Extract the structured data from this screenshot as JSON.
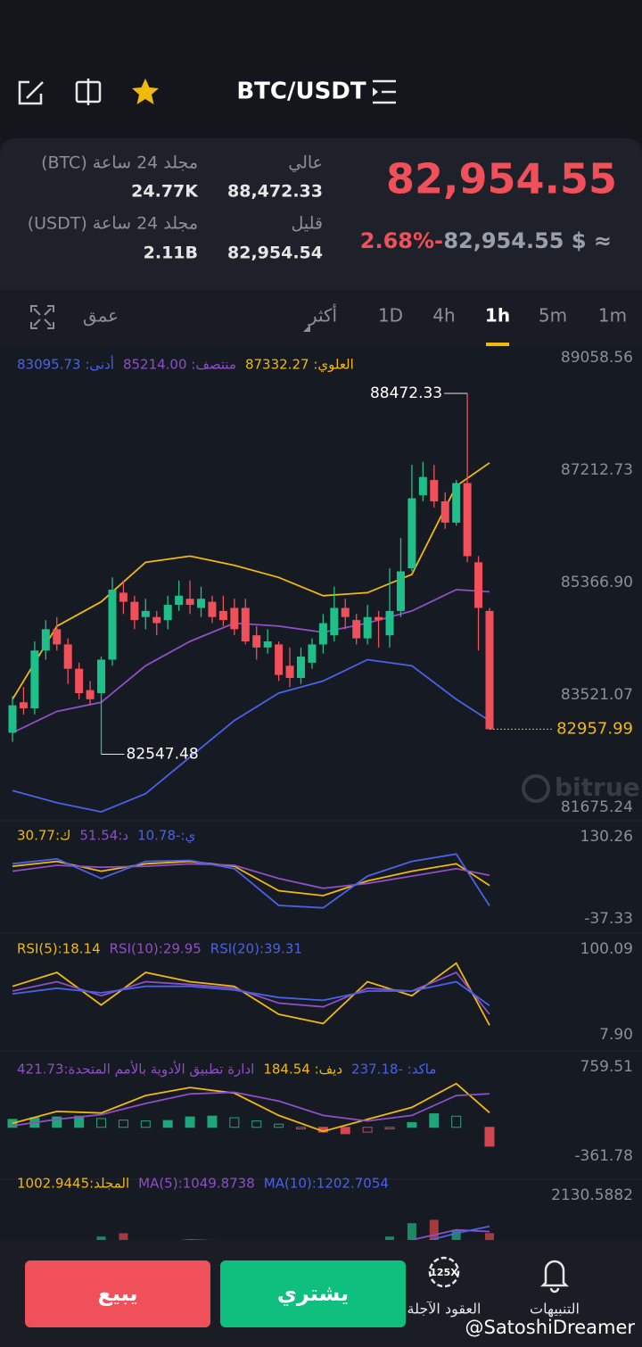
{
  "header": {
    "pair": "BTC/USDT"
  },
  "stats": {
    "price": "82,954.55",
    "change": "2.68%-",
    "fiat": "82,954.55 $ ≈",
    "high_label": "عالي",
    "high": "88,472.33",
    "low_label": "قليل",
    "low": "82,954.54",
    "vol_btc_label": "مجلد 24 ساعة (BTC)",
    "vol_btc": "24.77K",
    "vol_usdt_label": "مجلد 24 ساعة (USDT)",
    "vol_usdt": "2.11B"
  },
  "tabs": [
    "1m",
    "5m",
    "1h",
    "4h",
    "1D",
    "أكثر",
    "عمق"
  ],
  "footer": {
    "sell": "يبيع",
    "buy": "يشتري",
    "futures": "العقود الآجلة",
    "futures_badge": "125X",
    "alerts": "التنبيهات",
    "watermark": "@SatoshiDreamer"
  },
  "brand": "bitrue",
  "chart_data": [
    {
      "type": "candlestick",
      "open": [
        82900,
        83400,
        83300,
        84250,
        84600,
        84350,
        83950,
        83600,
        83550,
        84100,
        85200,
        85050,
        84800,
        84800,
        84750,
        85000,
        85100,
        84950,
        85050,
        84900,
        84950,
        84950,
        84500,
        84300,
        84350,
        84000,
        83800,
        84050,
        84350,
        84500,
        84950,
        84750,
        84450,
        84800,
        84500,
        84900,
        85600,
        86800,
        87050,
        86700,
        86350,
        87000,
        85700,
        84900
      ],
      "high": [
        83500,
        83650,
        84400,
        84750,
        84800,
        84450,
        84050,
        83750,
        84150,
        85450,
        85400,
        85150,
        85100,
        84900,
        85150,
        85400,
        85400,
        85300,
        85150,
        85150,
        85100,
        85100,
        84650,
        84600,
        84400,
        84300,
        84300,
        84450,
        84850,
        85300,
        85100,
        84850,
        85000,
        84900,
        85600,
        86100,
        87300,
        87350,
        87300,
        86850,
        87050,
        88472.33,
        85800,
        84950
      ],
      "low": [
        82750,
        83200,
        83200,
        84100,
        84250,
        83700,
        83450,
        83350,
        82547.48,
        84000,
        84850,
        84600,
        84600,
        84500,
        84600,
        84900,
        84850,
        84800,
        84700,
        84650,
        84500,
        84350,
        84100,
        84200,
        83750,
        83650,
        83700,
        83950,
        84200,
        84400,
        84600,
        84350,
        84350,
        84300,
        84300,
        84800,
        85550,
        86700,
        86600,
        86250,
        86300,
        85700,
        84250,
        82957.99
      ],
      "close": [
        83350,
        83300,
        84250,
        84600,
        84350,
        83950,
        83550,
        83450,
        84100,
        85250,
        85050,
        84750,
        84900,
        84700,
        85000,
        85150,
        85000,
        85100,
        84800,
        84750,
        84600,
        84400,
        84300,
        84400,
        83850,
        83800,
        84150,
        84350,
        84700,
        84950,
        84800,
        84450,
        84800,
        84750,
        84900,
        85550,
        86750,
        87100,
        86700,
        86350,
        87000,
        85800,
        84950,
        82957.99
      ],
      "series": [
        {
          "name": "العلوي: 87332.27",
          "color": "#f0b90b",
          "x": [
            0,
            4,
            8,
            12,
            16,
            20,
            24,
            28,
            32,
            36,
            40,
            43
          ],
          "values": [
            83450,
            84650,
            85050,
            85700,
            85800,
            85650,
            85450,
            85150,
            85200,
            85500,
            86950,
            87332.27
          ]
        },
        {
          "name": "منتصف: 85214.00",
          "color": "#8e4fc7",
          "x": [
            0,
            4,
            8,
            12,
            16,
            20,
            24,
            28,
            32,
            36,
            40,
            43
          ],
          "values": [
            82900,
            83250,
            83400,
            84000,
            84400,
            84700,
            84650,
            84550,
            84700,
            84900,
            85250,
            85214
          ]
        },
        {
          "name": "أدنى: 83095.73",
          "color": "#4a62e8",
          "x": [
            0,
            4,
            8,
            12,
            16,
            20,
            24,
            28,
            32,
            36,
            40,
            43
          ],
          "values": [
            81950,
            81750,
            81600,
            81900,
            82500,
            83100,
            83550,
            83750,
            84100,
            84000,
            83450,
            83095.73
          ]
        }
      ],
      "max_label": 88472.33,
      "min_label": 82547.48,
      "last_price": 82957.99,
      "ylim": [
        81675.24,
        89058.56
      ],
      "yticks": [
        89058.56,
        87212.73,
        {
          "value": 85366.9,
          "label": "85366.90"
        },
        83521.07,
        81675.24
      ],
      "grid": false
    },
    {
      "type": "line",
      "series": [
        {
          "name": "ك:30.77",
          "color": "#f0b90b",
          "x": [
            0,
            4,
            8,
            12,
            16,
            20,
            24,
            28,
            32,
            36,
            40,
            43
          ],
          "values": [
            70,
            80,
            60,
            75,
            80,
            70,
            20,
            10,
            40,
            60,
            75,
            30.77
          ]
        },
        {
          "name": "د:51.54",
          "color": "#8e4fc7",
          "x": [
            0,
            4,
            8,
            12,
            16,
            20,
            24,
            28,
            32,
            36,
            40,
            43
          ],
          "values": [
            60,
            72,
            68,
            70,
            75,
            72,
            45,
            25,
            35,
            50,
            65,
            51.54
          ]
        },
        {
          "name": "ي:-10.78",
          "color": "#4a62e8",
          "x": [
            0,
            4,
            8,
            12,
            16,
            20,
            24,
            28,
            32,
            36,
            40,
            43
          ],
          "values": [
            75,
            85,
            45,
            80,
            82,
            65,
            -10,
            -15,
            50,
            80,
            95,
            -10.78
          ]
        }
      ],
      "ylim": [
        -37.33,
        130.26
      ],
      "yticks": [
        130.26,
        -37.33
      ],
      "grid": false
    },
    {
      "type": "line",
      "series": [
        {
          "name": "RSI(5):18.14",
          "color": "#f0b90b",
          "x": [
            0,
            4,
            8,
            12,
            16,
            20,
            24,
            28,
            32,
            36,
            40,
            43
          ],
          "values": [
            60,
            75,
            40,
            75,
            65,
            60,
            30,
            20,
            65,
            50,
            85,
            18.14
          ]
        },
        {
          "name": "RSI(10):29.95",
          "color": "#8e4fc7",
          "x": [
            0,
            4,
            8,
            12,
            16,
            20,
            24,
            28,
            32,
            36,
            40,
            43
          ],
          "values": [
            55,
            65,
            50,
            65,
            62,
            58,
            42,
            38,
            58,
            55,
            75,
            29.95
          ]
        },
        {
          "name": "RSI(20):39.31",
          "color": "#4a62e8",
          "x": [
            0,
            4,
            8,
            12,
            16,
            20,
            24,
            28,
            32,
            36,
            40,
            43
          ],
          "values": [
            52,
            58,
            53,
            60,
            60,
            56,
            48,
            45,
            55,
            55,
            65,
            39.31
          ]
        }
      ],
      "ylim": [
        {
          "value": 7.9,
          "label": "7.90"
        },
        100.09
      ],
      "yticks": [
        100.09,
        {
          "value": 7.9,
          "label": "7.90"
        }
      ],
      "grid": false
    },
    {
      "type": "macd",
      "series": [
        {
          "name": "ديف: 184.54",
          "color": "#f0b90b",
          "x": [
            0,
            4,
            8,
            12,
            16,
            20,
            24,
            28,
            32,
            36,
            40,
            43
          ],
          "values": [
            50,
            200,
            180,
            400,
            500,
            430,
            150,
            -50,
            100,
            250,
            550,
            184.54
          ]
        },
        {
          "name": "ادارة تطبيق الأدوية بالأمم المتحدة:421.73",
          "color": "#8e4fc7",
          "x": [
            0,
            4,
            8,
            12,
            16,
            20,
            24,
            28,
            32,
            36,
            40,
            43
          ],
          "values": [
            20,
            100,
            160,
            300,
            420,
            440,
            330,
            150,
            80,
            150,
            400,
            421.73
          ]
        }
      ],
      "histogram": {
        "name": "ماكد: -237.18",
        "x": [
          0,
          2,
          4,
          6,
          8,
          10,
          12,
          14,
          16,
          18,
          20,
          22,
          24,
          26,
          28,
          30,
          32,
          34,
          36,
          38,
          40,
          43
        ],
        "values": [
          100,
          120,
          130,
          140,
          110,
          90,
          80,
          85,
          130,
          140,
          120,
          80,
          40,
          -20,
          -60,
          -80,
          -60,
          -20,
          60,
          170,
          140,
          -237.18
        ]
      },
      "ylim": [
        -361.78,
        759.51
      ],
      "yticks": [
        759.51,
        -361.78
      ],
      "grid": false
    },
    {
      "type": "volume",
      "bars": {
        "name": "المجلد:1002.9445",
        "x": [
          0,
          2,
          4,
          6,
          8,
          10,
          12,
          14,
          16,
          18,
          20,
          22,
          24,
          26,
          28,
          30,
          32,
          34,
          36,
          38,
          40,
          43
        ],
        "values": [
          600,
          500,
          650,
          550,
          900,
          1000,
          700,
          650,
          500,
          800,
          400,
          300,
          700,
          600,
          350,
          500,
          450,
          900,
          1300,
          1400,
          1100,
          1002.9445
        ]
      },
      "series": [
        {
          "name": "MA(5):1049.8738",
          "color": "#8e4fc7",
          "x": [
            0,
            4,
            8,
            12,
            16,
            20,
            24,
            28,
            32,
            36,
            40,
            43
          ],
          "values": [
            500,
            600,
            650,
            700,
            800,
            750,
            600,
            500,
            500,
            800,
            1100,
            1049.8738
          ]
        },
        {
          "name": "MA(10):1202.7054",
          "color": "#4a62e8",
          "x": [
            0,
            4,
            8,
            12,
            16,
            20,
            24,
            28,
            32,
            36,
            40,
            43
          ],
          "values": [
            450,
            550,
            600,
            650,
            700,
            750,
            700,
            600,
            550,
            650,
            1000,
            1202.7054
          ]
        }
      ],
      "ylim": [
        0,
        2130.5882
      ],
      "yticks": [
        2130.5882
      ],
      "grid": false
    }
  ]
}
